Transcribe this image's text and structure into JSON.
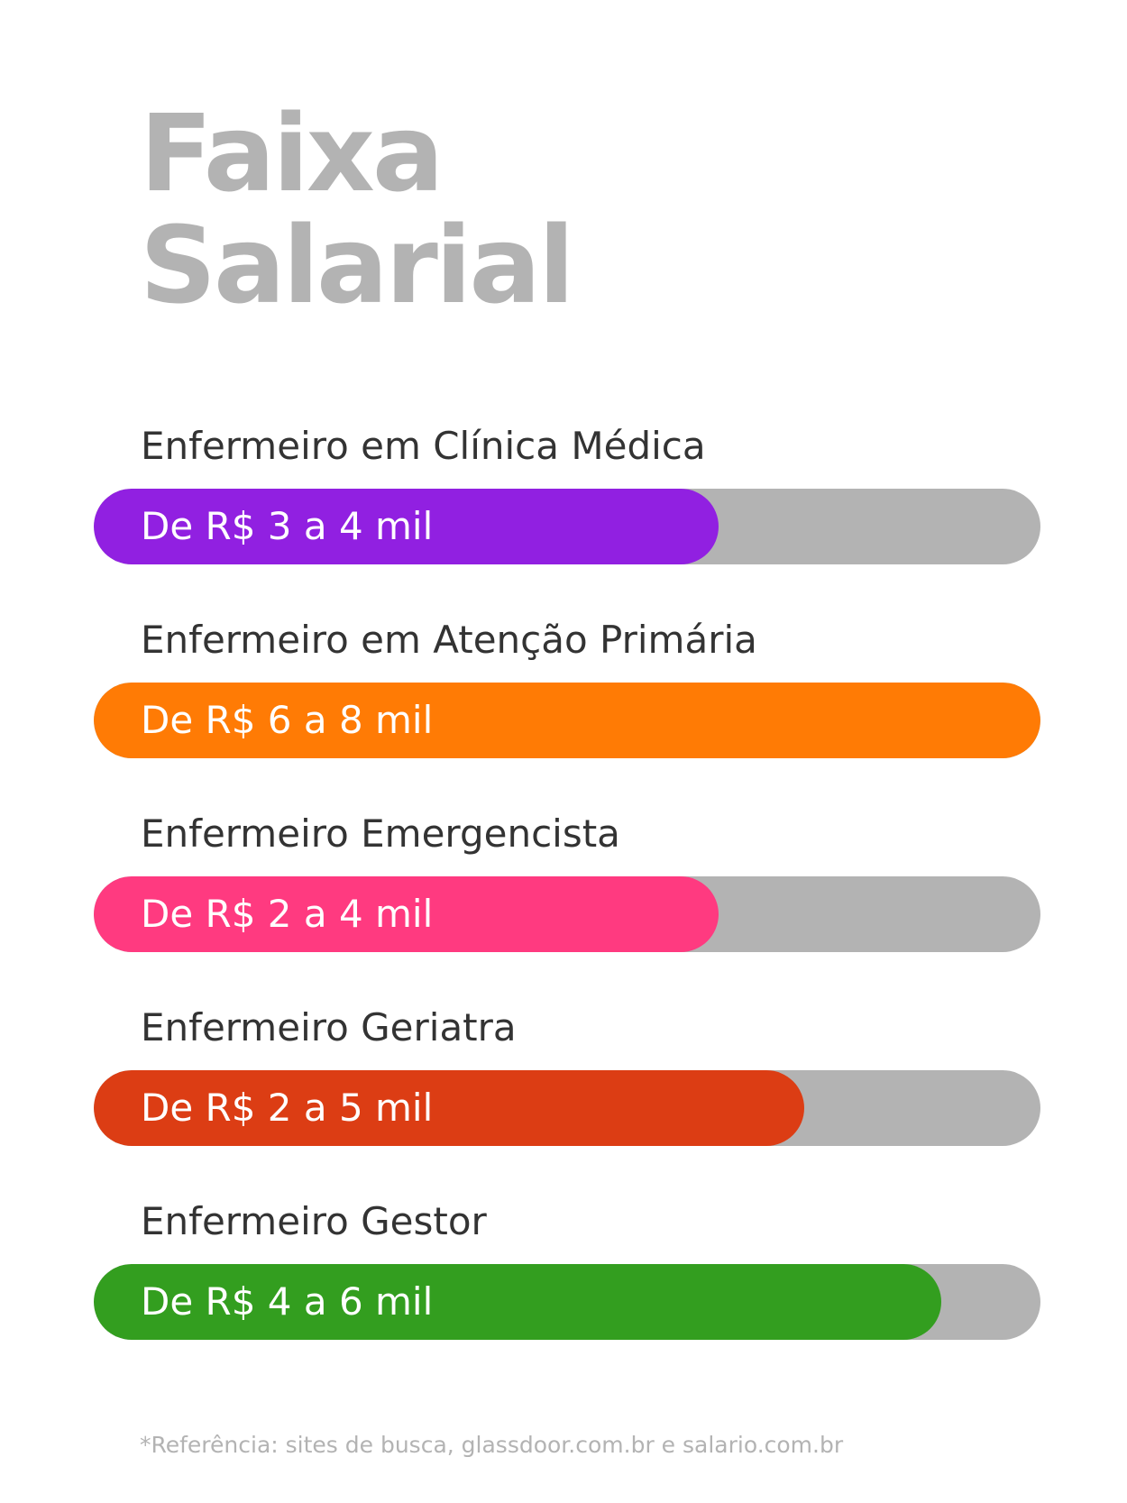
{
  "title": {
    "line1": "Faixa",
    "line2": "Salarial"
  },
  "chart_data": {
    "type": "bar",
    "title": "Faixa Salarial",
    "categories": [
      "Enfermeiro em Clínica Médica",
      "Enfermeiro em Atenção Primária",
      "Enfermeiro Emergencista",
      "Enfermeiro Geriatra",
      "Enfermeiro Gestor"
    ],
    "ranges": [
      {
        "min": 3,
        "max": 4,
        "label": "De R$ 3 a 4 mil",
        "color": "#9120e1",
        "fill_fraction": 0.66
      },
      {
        "min": 6,
        "max": 8,
        "label": "De R$ 6 a 8 mil",
        "color": "#ff7b05",
        "fill_fraction": 1.0
      },
      {
        "min": 2,
        "max": 4,
        "label": "De R$ 2 a 4 mil",
        "color": "#ff3a80",
        "fill_fraction": 0.66
      },
      {
        "min": 2,
        "max": 5,
        "label": "De R$ 2 a 5 mil",
        "color": "#dc3d14",
        "fill_fraction": 0.75
      },
      {
        "min": 4,
        "max": 6,
        "label": "De R$ 4 a 6 mil",
        "color": "#339e1f",
        "fill_fraction": 0.895
      }
    ],
    "track_color": "#b3b3b3"
  },
  "footnote": "*Referência: sites de busca, glassdoor.com.br e salario.com.br"
}
